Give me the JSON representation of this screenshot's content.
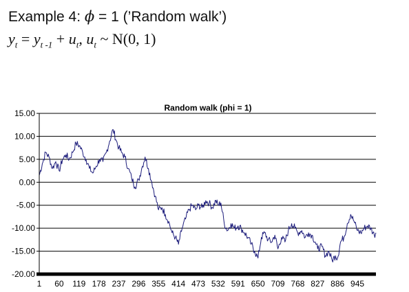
{
  "slide": {
    "heading_prefix": "Example 4: ",
    "phi_symbol": "ϕ",
    "heading_suffix": " = 1 (’Random walk’)",
    "eq_y": "y",
    "eq_t": "t",
    "eq_eq": " = ",
    "eq_tm1": "t -1",
    "eq_plus": " + ",
    "eq_u": "u",
    "eq_comma": ", ",
    "eq_dist": " ~ N(0, 1)"
  },
  "chart_data": {
    "type": "line",
    "title": "Random walk (phi = 1)",
    "xlabel": "",
    "ylabel": "",
    "ylim": [
      -20,
      15
    ],
    "yticks": [
      15,
      10,
      5,
      0,
      -5,
      -10,
      -15,
      -20
    ],
    "ytick_labels": [
      "15.00",
      "10.00",
      "5.00",
      "0.00",
      "-5.00",
      "-10.00",
      "-15.00",
      "-20.00"
    ],
    "xlim": [
      1,
      1000
    ],
    "xticks": [
      1,
      60,
      119,
      178,
      237,
      296,
      355,
      414,
      473,
      532,
      591,
      650,
      709,
      768,
      827,
      886,
      945
    ],
    "grid": true,
    "series_color": "#1a1a7a",
    "series": [
      {
        "x": [
          1,
          10,
          20,
          30,
          40,
          50,
          60,
          70,
          80,
          90,
          100,
          110,
          120,
          130,
          140,
          150,
          160,
          170,
          180,
          190,
          200,
          210,
          220,
          230,
          237,
          245,
          255,
          265,
          275,
          285,
          296,
          305,
          315,
          325,
          335,
          345,
          355,
          365,
          375,
          385,
          395,
          405,
          414,
          425,
          435,
          445,
          455,
          465,
          473,
          485,
          495,
          505,
          515,
          525,
          532,
          540,
          550,
          560,
          570,
          580,
          591,
          600,
          610,
          620,
          630,
          640,
          650,
          660,
          670,
          680,
          690,
          700,
          709,
          720,
          730,
          740,
          750,
          760,
          768,
          780,
          790,
          800,
          810,
          820,
          827,
          840,
          850,
          860,
          870,
          880,
          886,
          895,
          905,
          915,
          925,
          935,
          945,
          955,
          965,
          975,
          985,
          995,
          1000
        ],
        "y": [
          1.5,
          4,
          6.5,
          5.5,
          3,
          4.5,
          2.5,
          5,
          6,
          5,
          6.5,
          8.5,
          8,
          6.5,
          5,
          3,
          2,
          3.5,
          5,
          4.5,
          6.5,
          9,
          11.5,
          9,
          7.5,
          6.5,
          5.5,
          3,
          1,
          -1,
          0.5,
          3,
          5.5,
          3,
          0,
          -3,
          -6,
          -5.5,
          -7,
          -8.5,
          -11,
          -12,
          -13.5,
          -10,
          -8,
          -6,
          -5,
          -6,
          -5,
          -5.5,
          -4,
          -4.5,
          -5.5,
          -4,
          -5,
          -4.5,
          -9,
          -10.5,
          -9,
          -10,
          -9.5,
          -10,
          -11,
          -12,
          -13.5,
          -15,
          -16.5,
          -12,
          -11,
          -12.5,
          -13,
          -11.5,
          -14.5,
          -12,
          -13,
          -10.5,
          -9,
          -10,
          -11,
          -10.5,
          -12,
          -11,
          -11.5,
          -13,
          -14.5,
          -14,
          -16,
          -15,
          -17,
          -16,
          -16.5,
          -13,
          -12,
          -9,
          -7,
          -8.5,
          -10.5,
          -11,
          -10,
          -9.5,
          -10,
          -11.5,
          -11
        ]
      }
    ]
  }
}
